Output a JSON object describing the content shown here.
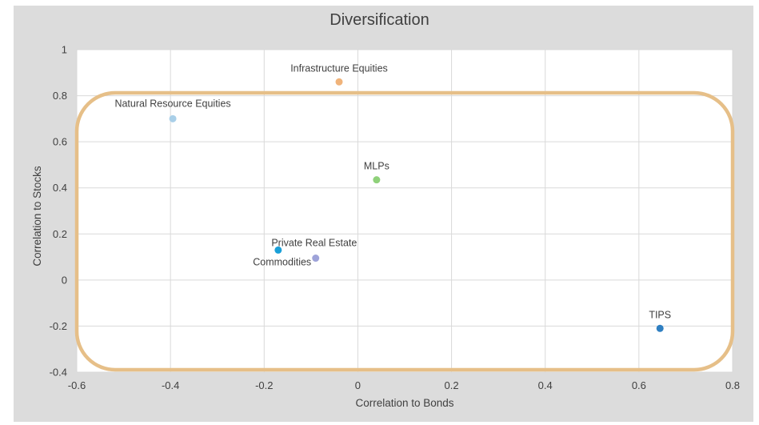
{
  "chart_data": {
    "type": "scatter",
    "title": "Diversification",
    "xlabel": "Correlation to Bonds",
    "ylabel": "Correlation to Stocks",
    "xlim": [
      -0.6,
      0.8
    ],
    "ylim": [
      -0.4,
      1.0
    ],
    "xticks": [
      "-0.6",
      "-0.4",
      "-0.2",
      "0",
      "0.2",
      "0.4",
      "0.6",
      "0.8"
    ],
    "yticks": [
      "1",
      "0.8",
      "0.6",
      "0.4",
      "0.2",
      "0",
      "-0.2",
      "-0.4"
    ],
    "grid": true,
    "points": [
      {
        "label": "Infrastructure Equities",
        "x": -0.04,
        "y": 0.86,
        "color": "#f0b37a",
        "label_pos": "above"
      },
      {
        "label": "Natural Resource Equities",
        "x": -0.395,
        "y": 0.7,
        "color": "#a9cfe8",
        "label_pos": "above-left"
      },
      {
        "label": "MLPs",
        "x": 0.04,
        "y": 0.435,
        "color": "#8fd17a",
        "label_pos": "above"
      },
      {
        "label": "Private Real Estate",
        "x": -0.17,
        "y": 0.13,
        "color": "#1aa0d8",
        "label_pos": "above-right"
      },
      {
        "label": "Commodities",
        "x": -0.09,
        "y": 0.095,
        "color": "#9ea3d9",
        "label_pos": "below-left"
      },
      {
        "label": "TIPS",
        "x": 0.645,
        "y": -0.21,
        "color": "#2f7fc1",
        "label_pos": "above"
      }
    ],
    "highlight_color": "#e6bf88"
  }
}
